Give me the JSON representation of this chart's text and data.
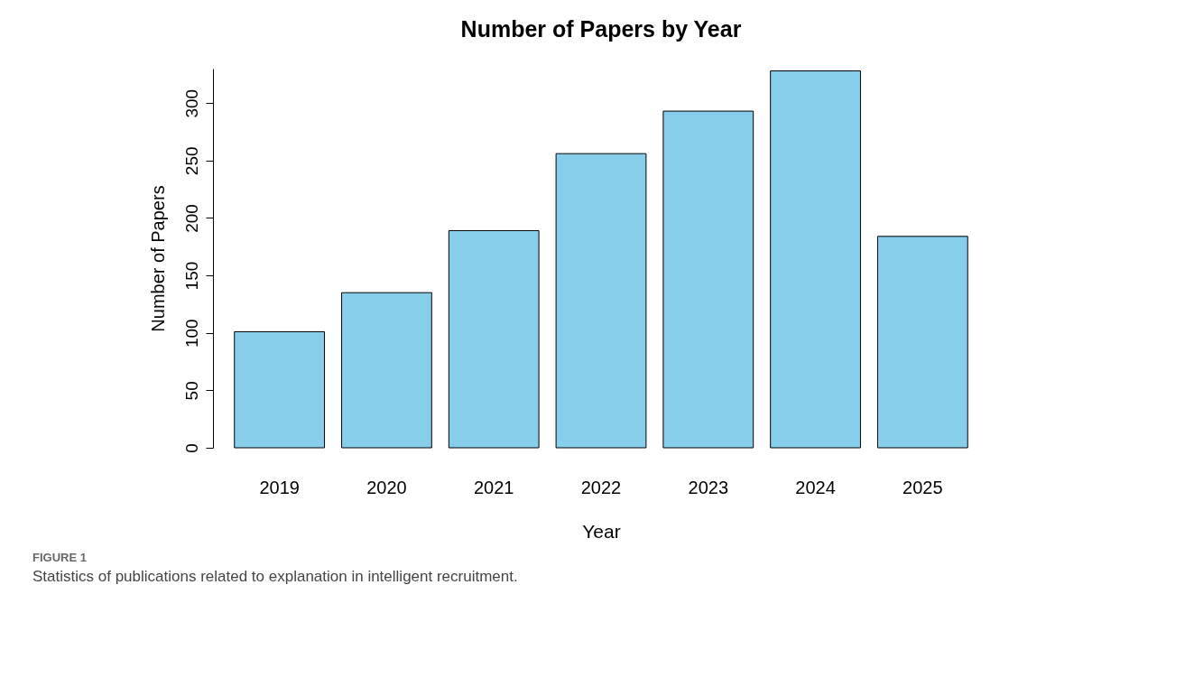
{
  "chart_data": {
    "type": "bar",
    "title": "Number of Papers by Year",
    "xlabel": "Year",
    "ylabel": "Number of Papers",
    "categories": [
      "2019",
      "2020",
      "2021",
      "2022",
      "2023",
      "2024",
      "2025"
    ],
    "values": [
      101,
      135,
      189,
      256,
      293,
      328,
      184
    ],
    "color": "#87ceeb",
    "ylim": [
      0,
      330
    ],
    "yticks": [
      0,
      50,
      100,
      150,
      200,
      250,
      300
    ],
    "grid": false,
    "annotations": [
      "FIGURE 1",
      "Statistics of publications related to explanation in intelligent recruitment."
    ]
  }
}
